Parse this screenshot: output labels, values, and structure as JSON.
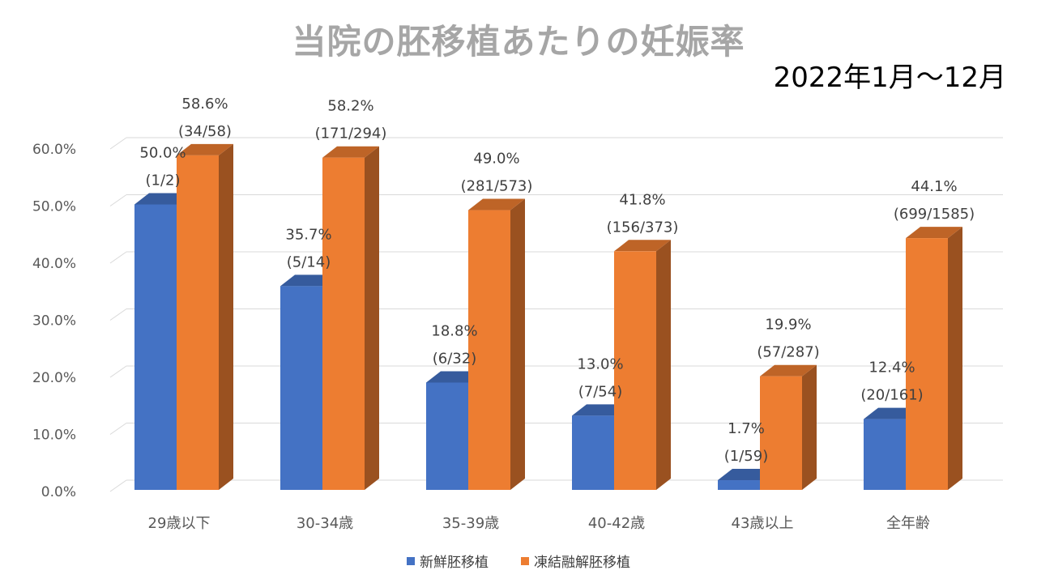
{
  "title": "当院の胚移植あたりの妊娠率",
  "period": "2022年1月～12月",
  "chart_data": {
    "type": "bar",
    "title": "当院の胚移植あたりの妊娠率",
    "categories": [
      "29歳以下",
      "30-34歳",
      "35-39歳",
      "40-42歳",
      "43歳以上",
      "全年齢"
    ],
    "ylim": [
      0,
      60
    ],
    "yticks": [
      "0.0%",
      "10.0%",
      "20.0%",
      "30.0%",
      "40.0%",
      "50.0%",
      "60.0%"
    ],
    "grid": true,
    "legend_position": "bottom",
    "series": [
      {
        "name": "新鮮胚移植",
        "color": "#4472c4",
        "values": [
          50.0,
          35.7,
          18.8,
          13.0,
          1.7,
          12.4
        ],
        "labels": [
          "50.0%",
          "35.7%",
          "18.8%",
          "13.0%",
          "1.7%",
          "12.4%"
        ],
        "counts": [
          "(1/2)",
          "(5/14)",
          "(6/32)",
          "(7/54)",
          "(1/59)",
          "(20/161)"
        ]
      },
      {
        "name": "凍結融解胚移植",
        "color": "#ed7d31",
        "values": [
          58.6,
          58.2,
          49.0,
          41.8,
          19.9,
          44.1
        ],
        "labels": [
          "58.6%",
          "58.2%",
          "49.0%",
          "41.8%",
          "19.9%",
          "44.1%"
        ],
        "counts": [
          "(34/58)",
          "(171/294)",
          "(281/573)",
          "(156/373)",
          "(57/287)",
          "(699/1585)"
        ]
      }
    ]
  }
}
